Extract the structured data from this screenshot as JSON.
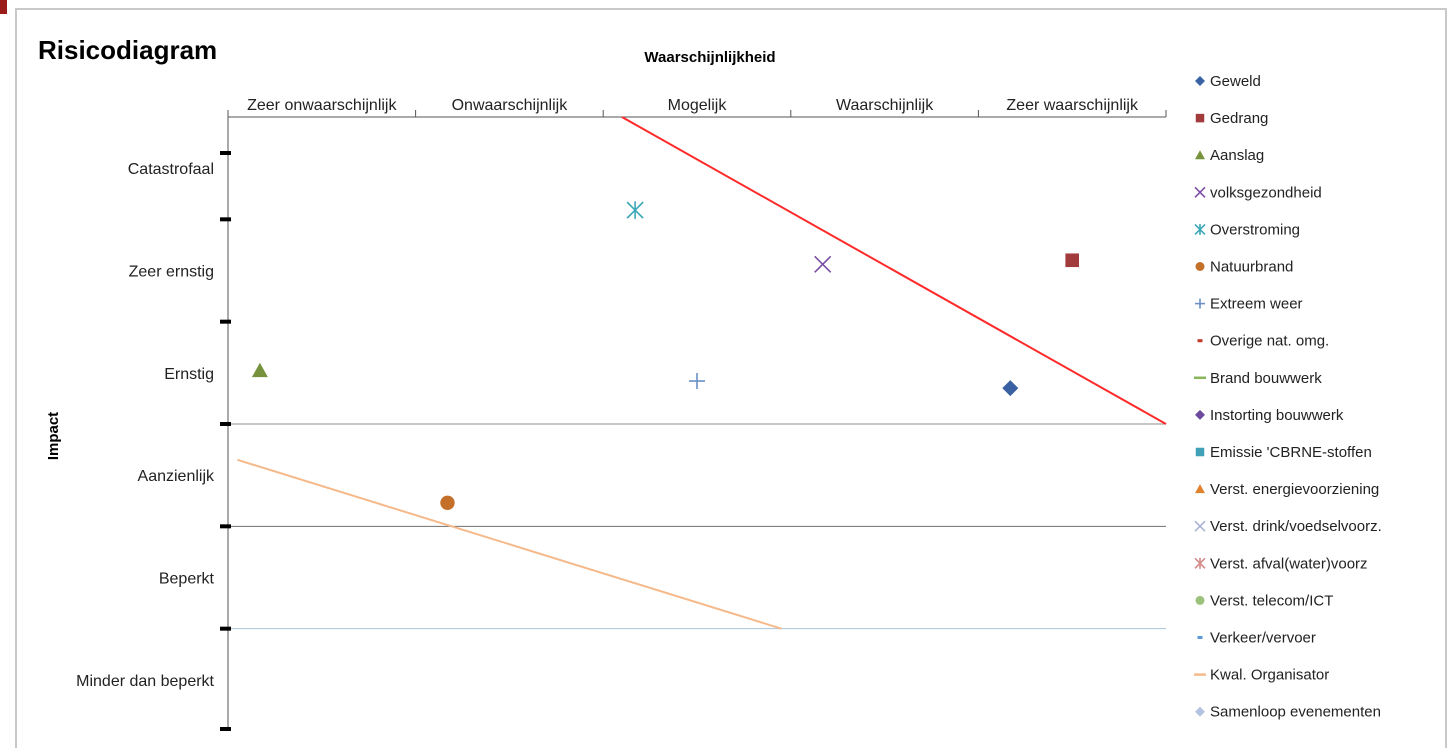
{
  "chart_data": {
    "type": "scatter",
    "title": "Risicodiagram",
    "xlabel": "Waarschijnlijkheid",
    "ylabel": "Impact",
    "x_categories": [
      "Zeer onwaarschijnlijk",
      "Onwaarschijnlijk",
      "Mogelijk",
      "Waarschijnlijk",
      "Zeer waarschijnlijk"
    ],
    "y_categories": [
      "Catastrofaal",
      "Zeer ernstig",
      "Ernstig",
      "Aanzienlijk",
      "Beperkt",
      "Minder dan beperkt"
    ],
    "xlim": [
      0,
      5
    ],
    "ylim": [
      0,
      6
    ],
    "legend_position": "right",
    "series": [
      {
        "name": "Geweld",
        "marker": "diamond",
        "color": "#3a62a3",
        "points": [
          [
            4.17,
            3.35
          ]
        ]
      },
      {
        "name": "Gedrang",
        "marker": "square",
        "color": "#a23b3b",
        "points": [
          [
            4.5,
            4.6
          ]
        ]
      },
      {
        "name": "Aanslag",
        "marker": "triangle",
        "color": "#76923c",
        "points": [
          [
            0.17,
            3.52
          ]
        ]
      },
      {
        "name": "volksgezondheid",
        "marker": "x",
        "color": "#7a4ea3",
        "points": [
          [
            3.17,
            4.56
          ]
        ]
      },
      {
        "name": "Overstroming",
        "marker": "star",
        "color": "#3aa7b8",
        "points": [
          [
            2.17,
            5.09
          ]
        ]
      },
      {
        "name": "Natuurbrand",
        "marker": "circle",
        "color": "#c46f2a",
        "points": [
          [
            1.17,
            2.23
          ]
        ]
      },
      {
        "name": "Extreem weer",
        "marker": "plus",
        "color": "#6a8fc9",
        "points": [
          [
            2.5,
            3.42
          ]
        ]
      },
      {
        "name": "Overige nat. omg.",
        "marker": "dash",
        "color": "#c0392b",
        "points": []
      },
      {
        "name": "Brand bouwwerk",
        "marker": "long-dash",
        "color": "#8bb55a",
        "points": []
      },
      {
        "name": "Instorting bouwwerk",
        "marker": "diamond",
        "color": "#6e4a9e",
        "points": []
      },
      {
        "name": "Emissie 'CBRNE-stoffen",
        "marker": "square",
        "color": "#3fa0b8",
        "points": []
      },
      {
        "name": "Verst. energievoorziening",
        "marker": "triangle",
        "color": "#e0832f",
        "points": []
      },
      {
        "name": "Verst. drink/voedselvoorz.",
        "marker": "x",
        "color": "#aab4d6",
        "points": []
      },
      {
        "name": "Verst. afval(water)voorz",
        "marker": "star",
        "color": "#d58a8a",
        "points": []
      },
      {
        "name": "Verst. telecom/ICT",
        "marker": "circle",
        "color": "#9bc27a",
        "points": []
      },
      {
        "name": "Verkeer/vervoer",
        "marker": "dash",
        "color": "#5b9bd5",
        "points": []
      },
      {
        "name": "Kwal. Organisator",
        "marker": "long-dash",
        "color": "#f6b98a",
        "points": []
      },
      {
        "name": "Samenloop evenementen",
        "marker": "diamond",
        "color": "#b4c4e0",
        "points": []
      }
    ],
    "lines": [
      {
        "color": "#ff2a2a",
        "from": [
          2.1,
          6.0
        ],
        "to": [
          5.0,
          3.0
        ]
      },
      {
        "color": "#f6b98a",
        "from": [
          0.05,
          2.65
        ],
        "to": [
          2.95,
          1.0
        ]
      }
    ],
    "gridlines": [
      {
        "y": 3.0,
        "color": "#8c8c8c"
      },
      {
        "y": 2.0,
        "color": "#6f6f6f"
      },
      {
        "y": 1.0,
        "color": "#a8c4dc"
      }
    ]
  }
}
